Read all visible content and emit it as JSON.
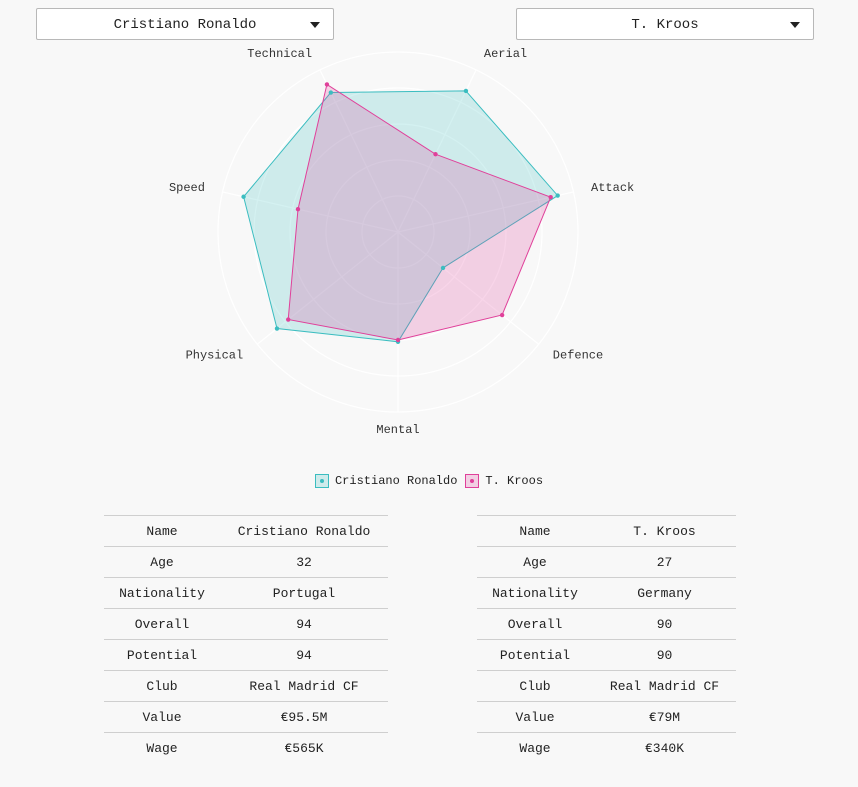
{
  "selectors": {
    "left": "Cristiano Ronaldo",
    "right": "T. Kroos"
  },
  "chart_data": {
    "type": "radar",
    "axes": [
      "Aerial",
      "Attack",
      "Defence",
      "Mental",
      "Physical",
      "Speed",
      "Technical"
    ],
    "rmax": 100,
    "grid": true,
    "legend_position": "bottom",
    "series": [
      {
        "name": "Cristiano Ronaldo",
        "color": "#3bbdc0",
        "values": [
          87,
          91,
          32,
          61,
          86,
          88,
          86
        ]
      },
      {
        "name": "T. Kroos",
        "color": "#e0409a",
        "values": [
          48,
          87,
          74,
          60,
          78,
          57,
          91
        ]
      }
    ]
  },
  "players": [
    {
      "rows": [
        {
          "label": "Name",
          "value": "Cristiano Ronaldo"
        },
        {
          "label": "Age",
          "value": "32"
        },
        {
          "label": "Nationality",
          "value": "Portugal"
        },
        {
          "label": "Overall",
          "value": "94"
        },
        {
          "label": "Potential",
          "value": "94"
        },
        {
          "label": "Club",
          "value": "Real Madrid CF"
        },
        {
          "label": "Value",
          "value": "€95.5M"
        },
        {
          "label": "Wage",
          "value": "€565K"
        }
      ]
    },
    {
      "rows": [
        {
          "label": "Name",
          "value": "T. Kroos"
        },
        {
          "label": "Age",
          "value": "27"
        },
        {
          "label": "Nationality",
          "value": "Germany"
        },
        {
          "label": "Overall",
          "value": "90"
        },
        {
          "label": "Potential",
          "value": "90"
        },
        {
          "label": "Club",
          "value": "Real Madrid CF"
        },
        {
          "label": "Value",
          "value": "€79M"
        },
        {
          "label": "Wage",
          "value": "€340K"
        }
      ]
    }
  ]
}
